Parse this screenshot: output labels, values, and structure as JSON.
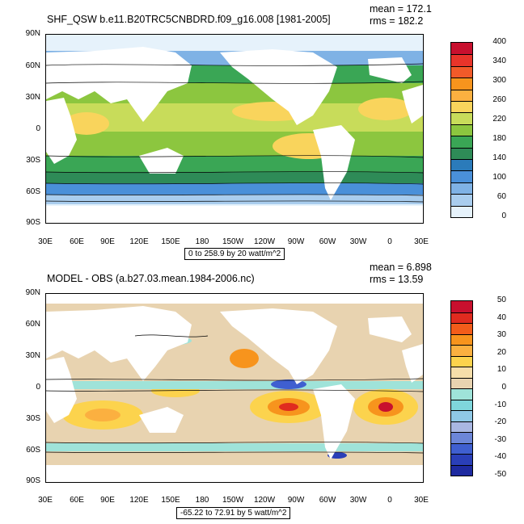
{
  "panels": [
    {
      "title": "SHF_QSW b.e11.B20TRC5CNBDRD.f09_g16.008 [1981-2005]",
      "mean": "mean = 172.1",
      "rms": "rms = 182.2",
      "range_note": "0 to 258.9 by 20 watt/m^2",
      "colorbar": {
        "labels": [
          "400",
          "340",
          "300",
          "260",
          "220",
          "180",
          "140",
          "100",
          "60",
          "0"
        ],
        "colors": [
          "#c8102e",
          "#e8342a",
          "#f15a29",
          "#f7941d",
          "#fbb040",
          "#f9d45c",
          "#c8dc5a",
          "#8cc63f",
          "#3aa655",
          "#2e8b57",
          "#2b7bba",
          "#4a90d9",
          "#7fb2e5",
          "#a9cdee",
          "#e6f2fb"
        ]
      }
    },
    {
      "title": "MODEL - OBS (a.b27.03.mean.1984-2006.nc)",
      "mean": "mean = 6.898",
      "rms": "rms = 13.59",
      "range_note": "-65.22 to 72.91 by 5 watt/m^2",
      "colorbar": {
        "labels": [
          "50",
          "40",
          "30",
          "20",
          "10",
          "0",
          "-10",
          "-20",
          "-30",
          "-40",
          "-50"
        ],
        "colors": [
          "#c8102e",
          "#e02b1f",
          "#f25c1a",
          "#f7941d",
          "#fbb040",
          "#fcd34d",
          "#f6deaa",
          "#e8d3b0",
          "#9fe3d9",
          "#7fd6dc",
          "#8fc8e6",
          "#a9b7e2",
          "#6c86d8",
          "#3f5fd0",
          "#2a3fb8",
          "#1e2aa0"
        ]
      }
    }
  ],
  "axes": {
    "lat_labels": [
      "90N",
      "60N",
      "30N",
      "0",
      "30S",
      "60S",
      "90S"
    ],
    "lon_labels": [
      "30E",
      "60E",
      "90E",
      "120E",
      "150E",
      "180",
      "150W",
      "120W",
      "90W",
      "60W",
      "30W",
      "0",
      "30E"
    ]
  },
  "chart_data": [
    {
      "type": "heatmap",
      "title": "SHF_QSW b.e11.B20TRC5CNBDRD.f09_g16.008 [1981-2005]",
      "xlabel": "",
      "ylabel": "",
      "xlim": [
        "30E",
        "30E"
      ],
      "ylim": [
        "90S",
        "90N"
      ],
      "units": "watt/m^2",
      "contour_range": [
        0,
        258.9
      ],
      "contour_interval": 20,
      "mean": 172.1,
      "rms": 182.2,
      "colorbar_ticks": [
        0,
        60,
        100,
        140,
        180,
        220,
        260,
        300,
        340,
        400
      ]
    },
    {
      "type": "heatmap",
      "title": "MODEL - OBS (a.b27.03.mean.1984-2006.nc)",
      "xlabel": "",
      "ylabel": "",
      "xlim": [
        "30E",
        "30E"
      ],
      "ylim": [
        "90S",
        "90N"
      ],
      "units": "watt/m^2",
      "contour_range": [
        -65.22,
        72.91
      ],
      "contour_interval": 5,
      "mean": 6.898,
      "rms": 13.59,
      "colorbar_ticks": [
        -50,
        -40,
        -30,
        -20,
        -10,
        0,
        10,
        20,
        30,
        40,
        50
      ]
    }
  ]
}
